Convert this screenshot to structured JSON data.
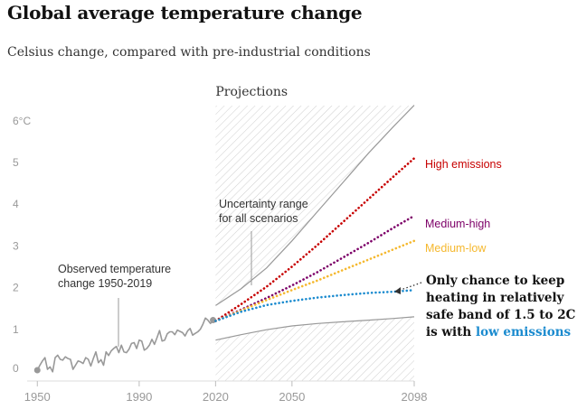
{
  "title": "Global average temperature change",
  "subtitle": "Celsius change, compared with pre-industrial conditions",
  "colors": {
    "high": "#c70000",
    "medium_high": "#7d0068",
    "medium_low": "#f5b82e",
    "low": "#1b8bcf",
    "observed": "#999999",
    "band_edge": "#999999",
    "axis": "#dcdcdc",
    "low_text": "#1b8bcf"
  },
  "chart_data": {
    "type": "line",
    "title": "Global average temperature change",
    "subtitle": "Celsius change, compared with pre-industrial conditions",
    "xlabel": "",
    "ylabel": "",
    "xlim": [
      1946,
      2098
    ],
    "ylim": [
      0,
      6.5
    ],
    "y_ticks": [
      0,
      1,
      2,
      3,
      4,
      5,
      6
    ],
    "y_tick_labels": [
      "0",
      "1",
      "2",
      "3",
      "4",
      "5",
      "6°C"
    ],
    "x_ticks": [
      1950,
      1990,
      2020,
      2050,
      2098
    ],
    "x_tick_labels": [
      "1950",
      "1990",
      "2020",
      "2050",
      "2098"
    ],
    "projection_start": 2020,
    "projection_label": "Projections",
    "observed": {
      "name": "Observed temperature change 1950-2019",
      "x": [
        1950,
        1951,
        1952,
        1953,
        1954,
        1955,
        1956,
        1957,
        1958,
        1959,
        1960,
        1961,
        1962,
        1963,
        1964,
        1965,
        1966,
        1967,
        1968,
        1969,
        1970,
        1971,
        1972,
        1973,
        1974,
        1975,
        1976,
        1977,
        1978,
        1979,
        1980,
        1981,
        1982,
        1983,
        1984,
        1985,
        1986,
        1987,
        1988,
        1989,
        1990,
        1991,
        1992,
        1993,
        1994,
        1995,
        1996,
        1997,
        1998,
        1999,
        2000,
        2001,
        2002,
        2003,
        2004,
        2005,
        2006,
        2007,
        2008,
        2009,
        2010,
        2011,
        2012,
        2013,
        2014,
        2015,
        2016,
        2017,
        2018,
        2019
      ],
      "y": [
        0.0,
        0.12,
        0.22,
        0.3,
        0.02,
        0.08,
        -0.04,
        0.3,
        0.36,
        0.26,
        0.24,
        0.32,
        0.28,
        0.26,
        0.02,
        0.12,
        0.22,
        0.2,
        0.16,
        0.3,
        0.26,
        0.1,
        0.28,
        0.44,
        0.18,
        0.25,
        0.12,
        0.44,
        0.35,
        0.46,
        0.52,
        0.57,
        0.42,
        0.6,
        0.44,
        0.42,
        0.5,
        0.64,
        0.66,
        0.52,
        0.72,
        0.7,
        0.48,
        0.52,
        0.6,
        0.74,
        0.62,
        0.78,
        0.95,
        0.7,
        0.72,
        0.87,
        0.92,
        0.92,
        0.85,
        0.96,
        0.93,
        0.9,
        0.82,
        0.94,
        1.0,
        0.84,
        0.88,
        0.92,
        0.98,
        1.1,
        1.25,
        1.2,
        1.12,
        1.2
      ]
    },
    "uncertainty_band": {
      "name": "Uncertainty range for all scenarios",
      "x": [
        2020,
        2030,
        2040,
        2050,
        2060,
        2070,
        2080,
        2090,
        2098
      ],
      "upper": [
        1.55,
        1.95,
        2.45,
        3.1,
        3.8,
        4.5,
        5.2,
        5.85,
        6.35
      ],
      "lower": [
        0.72,
        0.85,
        0.97,
        1.06,
        1.12,
        1.16,
        1.2,
        1.24,
        1.28
      ]
    },
    "series": [
      {
        "name": "High emissions",
        "x": [
          2020,
          2030,
          2040,
          2050,
          2060,
          2070,
          2080,
          2090,
          2098
        ],
        "values": [
          1.18,
          1.58,
          2.0,
          2.48,
          3.0,
          3.55,
          4.1,
          4.65,
          5.08
        ]
      },
      {
        "name": "Medium-high",
        "x": [
          2020,
          2030,
          2040,
          2050,
          2060,
          2070,
          2080,
          2090,
          2098
        ],
        "values": [
          1.18,
          1.45,
          1.73,
          2.03,
          2.35,
          2.7,
          3.05,
          3.42,
          3.7
        ]
      },
      {
        "name": "Medium-low",
        "x": [
          2020,
          2030,
          2040,
          2050,
          2060,
          2070,
          2080,
          2090,
          2098
        ],
        "values": [
          1.18,
          1.43,
          1.68,
          1.92,
          2.15,
          2.4,
          2.65,
          2.9,
          3.1
        ]
      },
      {
        "name": "Low emissions",
        "x": [
          2020,
          2030,
          2040,
          2050,
          2060,
          2070,
          2080,
          2090,
          2098
        ],
        "values": [
          1.18,
          1.4,
          1.56,
          1.66,
          1.74,
          1.8,
          1.85,
          1.88,
          1.92
        ]
      }
    ],
    "annotations": {
      "uncertainty": [
        "Uncertainty range",
        "for all scenarios"
      ],
      "observed": [
        "Observed temperature",
        "change 1950-2019"
      ],
      "callout": [
        "Only chance to keep",
        "heating in relatively",
        "safe band of 1.5 to 2C",
        "is with"
      ],
      "callout_highlight": "low emissions"
    }
  }
}
